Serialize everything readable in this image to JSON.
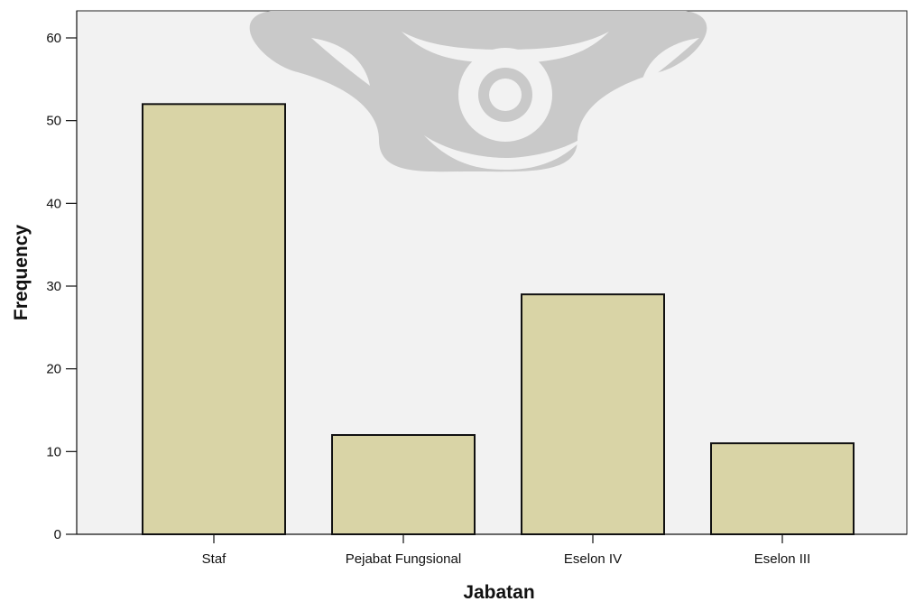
{
  "chart_data": {
    "type": "bar",
    "categories": [
      "Staf",
      "Pejabat Fungsional",
      "Eselon IV",
      "Eselon III"
    ],
    "values": [
      52,
      12,
      29,
      11
    ],
    "xlabel": "Jabatan",
    "ylabel": "Frequency",
    "ylim": [
      0,
      60
    ],
    "yticks": [
      "0",
      "10",
      "20",
      "30",
      "40",
      "50",
      "60"
    ],
    "grid": false,
    "legend": "none",
    "colors": {
      "bar_fill": "#d9d4a6",
      "bar_stroke": "#111111",
      "plot_background": "#f2f2f2",
      "axis": "#111111",
      "watermark": "#c9c9c9"
    }
  }
}
